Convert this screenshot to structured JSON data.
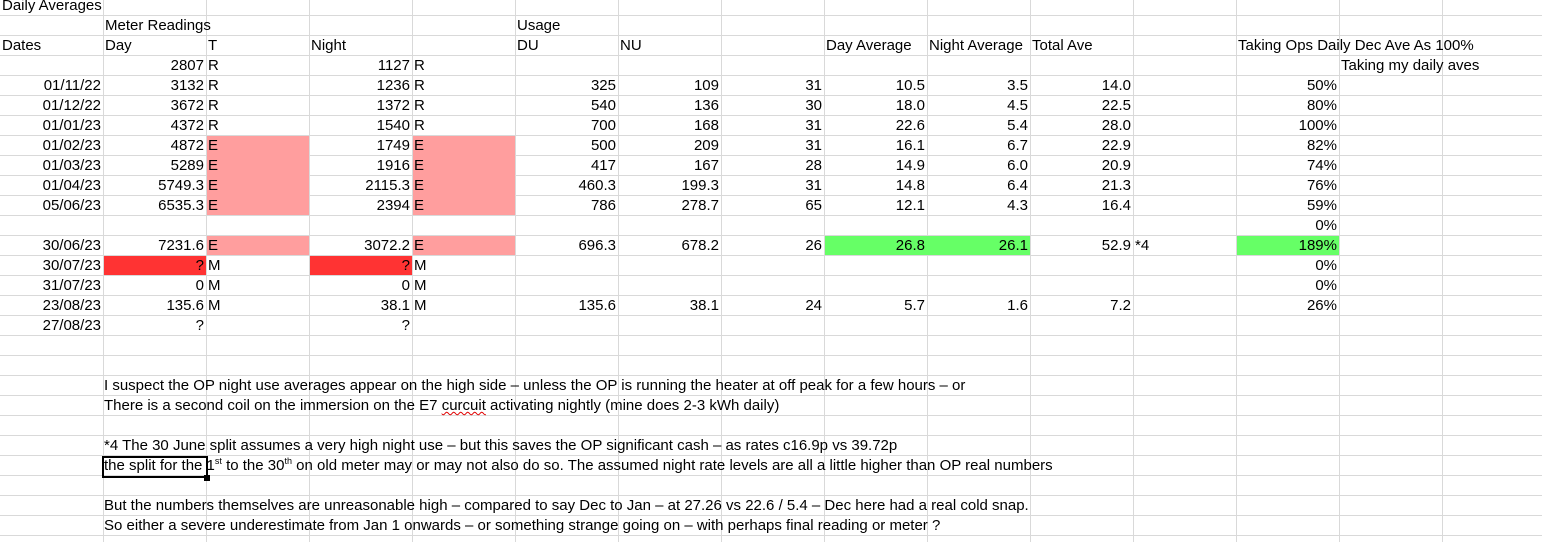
{
  "title": "Daily Averages",
  "group_headers": {
    "meter_readings": "Meter Readings",
    "usage": "Usage"
  },
  "headers": {
    "dates": "Dates",
    "day": "Day",
    "t": "T",
    "night": "Night",
    "du": "DU",
    "nu": "NU",
    "day_average": "Day Average",
    "night_average": "Night Average",
    "total_ave": "Total Ave",
    "taking_ops": "Taking Ops Daily Dec Ave As 100%",
    "taking_my": "Taking my daily aves"
  },
  "rows": [
    {
      "date": "",
      "day": "2807",
      "t": "R",
      "night": "1127",
      "tn": "R",
      "du": "",
      "nu": "",
      "days": "",
      "day_avg": "",
      "night_avg": "",
      "total": "",
      "note": "",
      "pct": ""
    },
    {
      "date": "01/11/22",
      "day": "3132",
      "t": "R",
      "night": "1236",
      "tn": "R",
      "du": "325",
      "nu": "109",
      "days": "31",
      "day_avg": "10.5",
      "night_avg": "3.5",
      "total": "14.0",
      "note": "",
      "pct": "50%"
    },
    {
      "date": "01/12/22",
      "day": "3672",
      "t": "R",
      "night": "1372",
      "tn": "R",
      "du": "540",
      "nu": "136",
      "days": "30",
      "day_avg": "18.0",
      "night_avg": "4.5",
      "total": "22.5",
      "note": "",
      "pct": "80%"
    },
    {
      "date": "01/01/23",
      "day": "4372",
      "t": "R",
      "night": "1540",
      "tn": "R",
      "du": "700",
      "nu": "168",
      "days": "31",
      "day_avg": "22.6",
      "night_avg": "5.4",
      "total": "28.0",
      "note": "",
      "pct": "100%"
    },
    {
      "date": "01/02/23",
      "day": "4872",
      "t": "E",
      "night": "1749",
      "tn": "E",
      "du": "500",
      "nu": "209",
      "days": "31",
      "day_avg": "16.1",
      "night_avg": "6.7",
      "total": "22.9",
      "note": "",
      "pct": "82%"
    },
    {
      "date": "01/03/23",
      "day": "5289",
      "t": "E",
      "night": "1916",
      "tn": "E",
      "du": "417",
      "nu": "167",
      "days": "28",
      "day_avg": "14.9",
      "night_avg": "6.0",
      "total": "20.9",
      "note": "",
      "pct": "74%"
    },
    {
      "date": "01/04/23",
      "day": "5749.3",
      "t": "E",
      "night": "2115.3",
      "tn": "E",
      "du": "460.3",
      "nu": "199.3",
      "days": "31",
      "day_avg": "14.8",
      "night_avg": "6.4",
      "total": "21.3",
      "note": "",
      "pct": "76%"
    },
    {
      "date": "05/06/23",
      "day": "6535.3",
      "t": "E",
      "night": "2394",
      "tn": "E",
      "du": "786",
      "nu": "278.7",
      "days": "65",
      "day_avg": "12.1",
      "night_avg": "4.3",
      "total": "16.4",
      "note": "",
      "pct": "59%"
    },
    {
      "date": "",
      "day": "",
      "t": "",
      "night": "",
      "tn": "",
      "du": "",
      "nu": "",
      "days": "",
      "day_avg": "",
      "night_avg": "",
      "total": "",
      "note": "",
      "pct": "0%"
    },
    {
      "date": "30/06/23",
      "day": "7231.6",
      "t": "E",
      "night": "3072.2",
      "tn": "E",
      "du": "696.3",
      "nu": "678.2",
      "days": "26",
      "day_avg": "26.8",
      "night_avg": "26.1",
      "total": "52.9",
      "note": "*4",
      "pct": "189%"
    },
    {
      "date": "30/07/23",
      "day": "?",
      "t": "M",
      "night": "?",
      "tn": "M",
      "du": "",
      "nu": "",
      "days": "",
      "day_avg": "",
      "night_avg": "",
      "total": "",
      "note": "",
      "pct": "0%"
    },
    {
      "date": "31/07/23",
      "day": "0",
      "t": "M",
      "night": "0",
      "tn": "M",
      "du": "",
      "nu": "",
      "days": "",
      "day_avg": "",
      "night_avg": "",
      "total": "",
      "note": "",
      "pct": "0%"
    },
    {
      "date": "23/08/23",
      "day": "135.6",
      "t": "M",
      "night": "38.1",
      "tn": "M",
      "du": "135.6",
      "nu": "38.1",
      "days": "24",
      "day_avg": "5.7",
      "night_avg": "1.6",
      "total": "7.2",
      "note": "",
      "pct": "26%"
    },
    {
      "date": "27/08/23",
      "day": "?",
      "t": "",
      "night": "?",
      "tn": "",
      "du": "",
      "nu": "",
      "days": "",
      "day_avg": "",
      "night_avg": "",
      "total": "",
      "note": "",
      "pct": ""
    }
  ],
  "notes": {
    "n1": "I suspect the OP night use averages appear on the high side – unless the OP is running the heater at off peak for a few hours – or",
    "n2_a": "There is a second coil on the immersion on the E7 ",
    "n2_b": "curcuit",
    "n2_c": " activating nightly (mine does 2-3 kWh daily)",
    "n3": "*4 The 30 June split assumes a very high night use – but this saves the OP significant cash – as rates c16.9p vs 39.72p",
    "n4_a": "the split for the 1",
    "n4_sup1": "st",
    "n4_b": " to the 30",
    "n4_sup2": "th",
    "n4_c": " on old meter may or may not also do so.  The assumed night rate levels are all a little higher than OP real numbers",
    "n5": "But the numbers themselves are unreasonable high – compared to say Dec to Jan – at 27.26 vs 22.6 / 5.4 – Dec here had a real cold snap.",
    "n6": "So either a severe underestimate from Jan 1 onwards – or something strange going on – with perhaps final reading or meter ?"
  },
  "colors": {
    "estimate_fill": "#ff9e9e",
    "missing_fill": "#ff3333",
    "highlight_fill": "#66ff66",
    "gridline": "#d9d9d9"
  }
}
